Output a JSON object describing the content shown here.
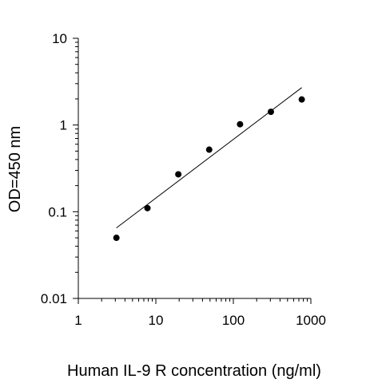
{
  "chart_data": {
    "type": "scatter",
    "title": "",
    "xlabel": "Human IL-9 R concentration (ng/ml)",
    "ylabel": "OD=450 nm",
    "x_scale": "log",
    "y_scale": "log",
    "xlim": [
      1,
      1000
    ],
    "ylim": [
      0.01,
      10
    ],
    "x_ticks": [
      "1",
      "10",
      "100",
      "1000"
    ],
    "y_ticks": [
      "0.01",
      "0.1",
      "1",
      "10"
    ],
    "grid": false,
    "legend": "none",
    "points": [
      {
        "x": 3.1,
        "y": 0.05
      },
      {
        "x": 7.8,
        "y": 0.11
      },
      {
        "x": 19.5,
        "y": 0.27
      },
      {
        "x": 48.8,
        "y": 0.52
      },
      {
        "x": 122,
        "y": 1.02
      },
      {
        "x": 305,
        "y": 1.42
      },
      {
        "x": 763,
        "y": 1.97
      }
    ],
    "fit_line": [
      {
        "x": 3.1,
        "y": 0.065
      },
      {
        "x": 763,
        "y": 2.7
      }
    ],
    "colors": {
      "points": "#000000",
      "line": "#000000",
      "axis": "#000000"
    }
  }
}
